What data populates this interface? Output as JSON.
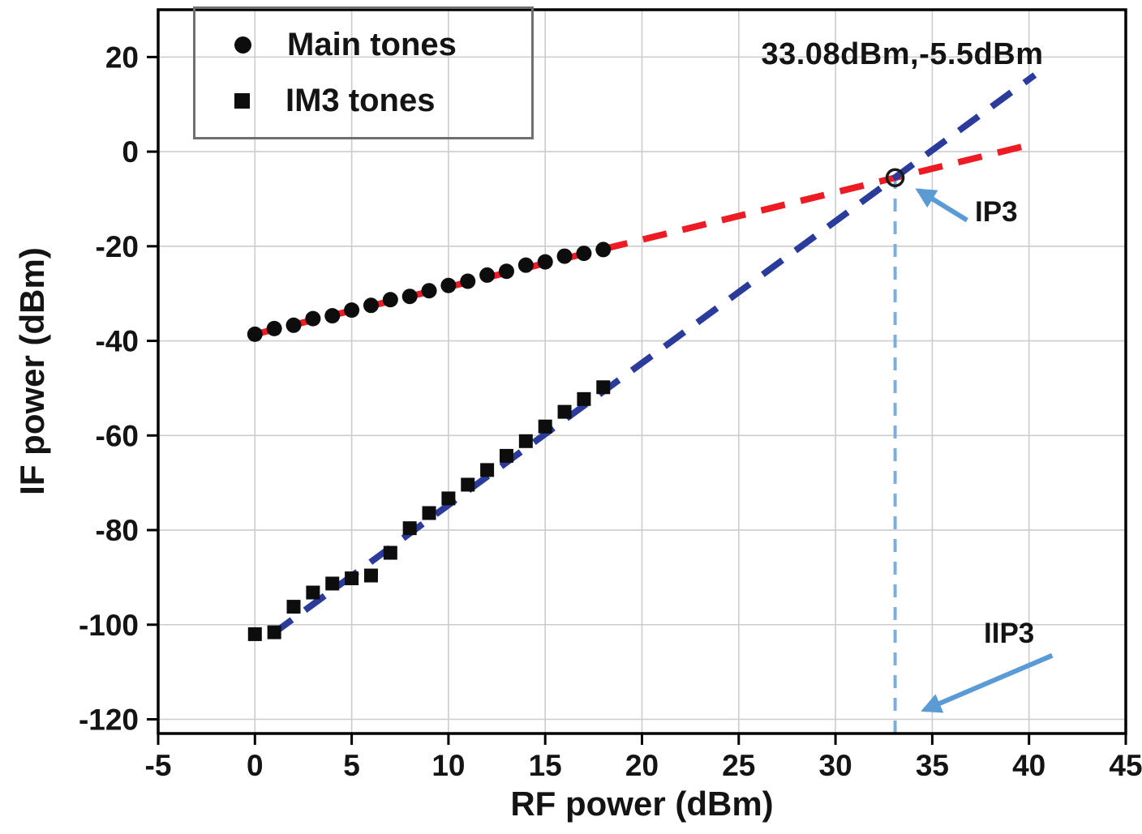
{
  "chart_data": {
    "type": "scatter",
    "title": "",
    "xlabel": "RF power (dBm)",
    "ylabel": "IF power (dBm)",
    "xlim": [
      -5,
      45
    ],
    "ylim": [
      -123,
      30
    ],
    "xticks": [
      -5,
      0,
      5,
      10,
      15,
      20,
      25,
      30,
      35,
      40,
      45
    ],
    "yticks": [
      20,
      0,
      -20,
      -40,
      -60,
      -80,
      -100,
      -120
    ],
    "grid": true,
    "grid_color": "#cccccc",
    "frame_color": "#000000",
    "tick_label_color": "#141414",
    "marker_color": "#0d0d0d",
    "legend": {
      "position": "top-left",
      "entries": [
        {
          "label": "Main tones",
          "marker": "circle"
        },
        {
          "label": "IM3 tones",
          "marker": "square"
        }
      ]
    },
    "series": [
      {
        "name": "Main tones",
        "marker": "circle",
        "slope_db_per_db": 1,
        "points": [
          [
            0,
            -38.6
          ],
          [
            1,
            -37.4
          ],
          [
            2,
            -36.7
          ],
          [
            3,
            -35.3
          ],
          [
            4,
            -34.7
          ],
          [
            5,
            -33.5
          ],
          [
            6,
            -32.5
          ],
          [
            7,
            -31.3
          ],
          [
            8,
            -30.6
          ],
          [
            9,
            -29.4
          ],
          [
            10,
            -28.3
          ],
          [
            11,
            -27.4
          ],
          [
            12,
            -26.1
          ],
          [
            13,
            -25.3
          ],
          [
            14,
            -24.0
          ],
          [
            15,
            -23.3
          ],
          [
            16,
            -22.1
          ],
          [
            17,
            -21.5
          ],
          [
            18,
            -20.7
          ]
        ]
      },
      {
        "name": "IM3 tones",
        "marker": "square",
        "slope_db_per_db": 3,
        "points": [
          [
            0,
            -102.0
          ],
          [
            1,
            -101.6
          ],
          [
            2,
            -96.2
          ],
          [
            3,
            -93.2
          ],
          [
            4,
            -91.3
          ],
          [
            5,
            -90.2
          ],
          [
            6,
            -89.6
          ],
          [
            7,
            -84.8
          ],
          [
            8,
            -79.6
          ],
          [
            9,
            -76.4
          ],
          [
            10,
            -73.3
          ],
          [
            11,
            -70.4
          ],
          [
            12,
            -67.3
          ],
          [
            13,
            -64.3
          ],
          [
            14,
            -61.2
          ],
          [
            15,
            -58.1
          ],
          [
            16,
            -55.0
          ],
          [
            17,
            -52.3
          ],
          [
            18,
            -49.8
          ]
        ]
      }
    ],
    "fit_lines": [
      {
        "name": "main-tones-fit",
        "color": "#ed1c24",
        "width": 8,
        "dash": [
          30,
          20
        ],
        "x1": -0.3,
        "y1": -38.9,
        "x2": 40.3,
        "y2": 1.7
      },
      {
        "name": "im3-tones-fit",
        "color": "#2a3b9b",
        "width": 8,
        "dash": [
          30,
          20
        ],
        "x1": 0.9,
        "y1": -102.0,
        "x2": 40.3,
        "y2": 16.2
      }
    ],
    "ip3_point": {
      "x": 33.08,
      "y": -5.5
    },
    "vline": {
      "x": 33.08,
      "y1": -123,
      "y2": -5.5,
      "color": "#79afdd",
      "width": 4,
      "dash": [
        16,
        12
      ]
    },
    "annotations": [
      {
        "name": "ip3-coordinates",
        "text": "33.08dBm,-5.5dBm"
      },
      {
        "name": "ip3-label",
        "text": "IP3"
      },
      {
        "name": "iip3-label",
        "text": "IIP3"
      }
    ],
    "arrows": [
      {
        "name": "ip3-arrow",
        "color": "#5b9bd5",
        "from": [
          36.8,
          -14.5
        ],
        "to": [
          34.3,
          -8.2
        ]
      },
      {
        "name": "iip3-arrow",
        "color": "#5b9bd5",
        "from": [
          41.2,
          -106.5
        ],
        "to": [
          34.6,
          -118.0
        ]
      }
    ]
  }
}
